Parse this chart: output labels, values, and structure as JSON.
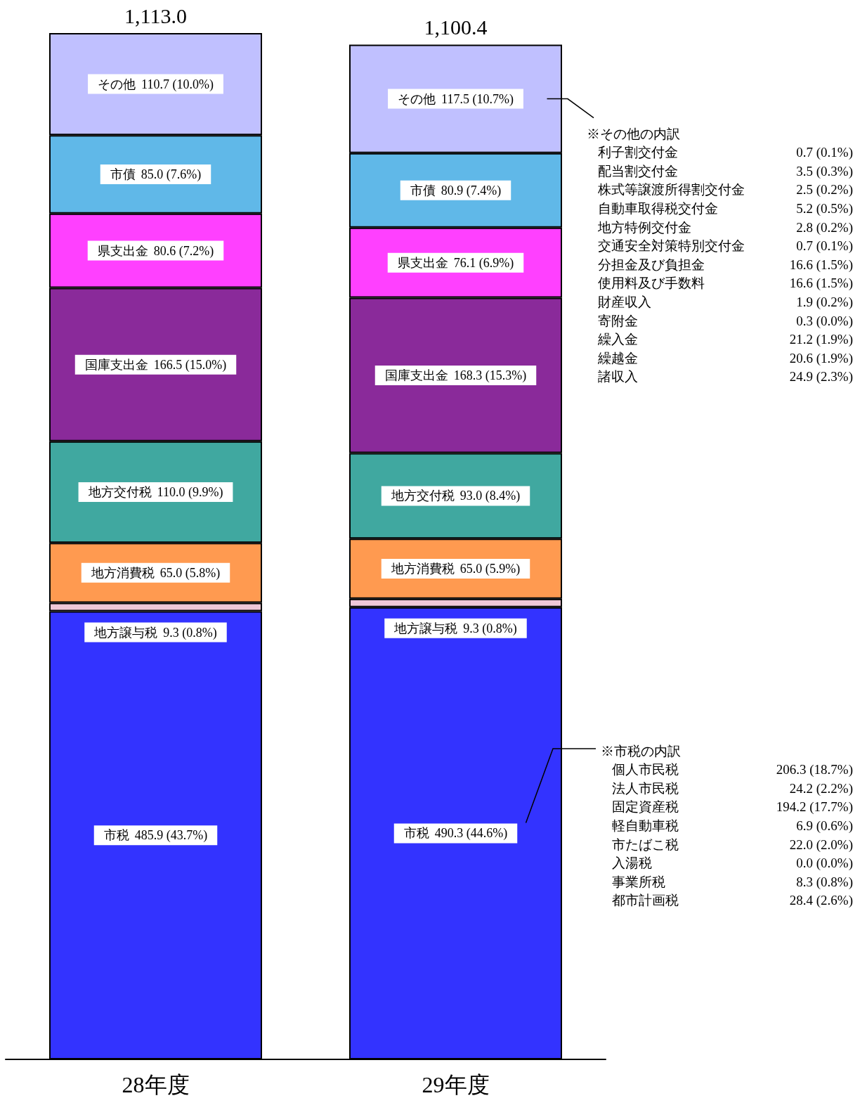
{
  "chart_data": {
    "type": "bar",
    "stacked": true,
    "legend": false,
    "categories": [
      "28年度",
      "29年度"
    ],
    "series": [
      {
        "name": "市税",
        "color": "#3333ff",
        "values": [
          485.9,
          490.3
        ],
        "value_labels": [
          "485.9 (43.7%)",
          "490.3 (44.6%)"
        ]
      },
      {
        "name": "地方譲与税",
        "color": "#f0c8d8",
        "values": [
          9.3,
          9.3
        ],
        "value_labels": [
          "9.3 (0.8%)",
          "9.3 (0.8%)"
        ]
      },
      {
        "name": "地方消費税",
        "color": "#ff9a50",
        "values": [
          65.0,
          65.0
        ],
        "value_labels": [
          "65.0 (5.8%)",
          "65.0 (5.9%)"
        ]
      },
      {
        "name": "地方交付税",
        "color": "#40a8a0",
        "values": [
          110.0,
          93.0
        ],
        "value_labels": [
          "110.0 (9.9%)",
          "93.0 (8.4%)"
        ]
      },
      {
        "name": "国庫支出金",
        "color": "#8a2a9a",
        "values": [
          166.5,
          168.3
        ],
        "value_labels": [
          "166.5 (15.0%)",
          "168.3 (15.3%)"
        ]
      },
      {
        "name": "県支出金",
        "color": "#ff40ff",
        "values": [
          80.6,
          76.1
        ],
        "value_labels": [
          "80.6 (7.2%)",
          "76.1 (6.9%)"
        ]
      },
      {
        "name": "市債",
        "color": "#60b8e8",
        "values": [
          85.0,
          80.9
        ],
        "value_labels": [
          "85.0 (7.6%)",
          "80.9 (7.4%)"
        ]
      },
      {
        "name": "その他",
        "color": "#c0c0ff",
        "values": [
          110.7,
          117.5
        ],
        "value_labels": [
          "110.7 (10.0%)",
          "117.5 (10.7%)"
        ]
      }
    ],
    "totals": [
      "1,113.0",
      "1,100.4"
    ],
    "annotations": [
      "※その他の内訳",
      "利子割交付金 0.7 (0.1%)",
      "配当割交付金 3.5 (0.3%)",
      "株式等譲渡所得割交付金 2.5 (0.2%)",
      "自動車取得税交付金 5.2 (0.5%)",
      "地方特例交付金 2.8 (0.2%)",
      "交通安全対策特別交付金 0.7 (0.1%)",
      "分担金及び負担金 16.6 (1.5%)",
      "使用料及び手数料 16.6 (1.5%)",
      "財産収入 1.9 (0.2%)",
      "寄附金 0.3 (0.0%)",
      "繰入金 21.2 (1.9%)",
      "繰越金 20.6 (1.9%)",
      "諸収入 24.9 (2.3%)",
      "※市税の内訳",
      "個人市民税 206.3 (18.7%)",
      "法人市民税 24.2 (2.2%)",
      "固定資産税 194.2 (17.7%)",
      "軽自動車税 6.9 (0.6%)",
      "市たばこ税 22.0 (2.0%)",
      "入湯税 0.0 (0.0%)",
      "事業所税 8.3 (0.8%)",
      "都市計画税 28.4 (2.6%)"
    ]
  }
}
